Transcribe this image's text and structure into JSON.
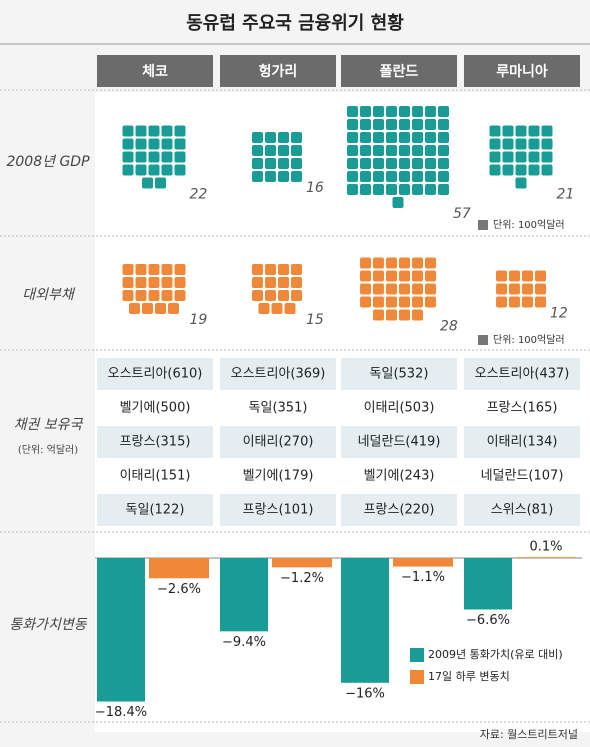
{
  "title": "동유럽 주요국 금융위기 현황",
  "gdp": {
    "label": "2008년 GDP",
    "values": [
      22,
      16,
      57,
      21
    ],
    "color": "#1a9c96",
    "unit": "단위: 100억달러"
  },
  "debt": {
    "label": "대외부채",
    "values": [
      19,
      15,
      28,
      12
    ],
    "color": "#f0883a",
    "unit": "단위: 100억달러"
  },
  "creditors": {
    "label": "채권 보유국",
    "unit": "(단위:  억달러)",
    "columns": [
      [
        "오스트리아(610)",
        "벨기에(500)",
        "프랑스(315)",
        "이태리(151)",
        "독일(122)"
      ],
      [
        "오스트리아(369)",
        "독일(351)",
        "이태리(270)",
        "벨기에(179)",
        "프랑스(101)"
      ],
      [
        "독일(532)",
        "이태리(503)",
        "네덜란드(419)",
        "벨기에(243)",
        "프랑스(220)"
      ],
      [
        "오스트리아(437)",
        "프랑스(165)",
        "이태리(134)",
        "네덜란드(107)",
        "스위스(81)"
      ]
    ]
  },
  "chart_data": {
    "type": "bar",
    "title": "통화가치변동",
    "categories": [
      "체코",
      "헝가리",
      "폴란드",
      "루마니아"
    ],
    "series": [
      {
        "name": "2009년 통화가치(유로 대비)",
        "color": "#1a9c96",
        "values": [
          -18.4,
          -9.4,
          -16,
          -6.6
        ],
        "value_labels": [
          "−18.4%",
          "−9.4%",
          "−16%",
          "−6.6%"
        ]
      },
      {
        "name": "17일 하루 변동치",
        "color": "#f0883a",
        "values": [
          -2.6,
          -1.2,
          -1.1,
          0.1
        ],
        "value_labels": [
          "−2.6%",
          "−1.2%",
          "−1.1%",
          "0.1%"
        ]
      }
    ]
  },
  "source": "자료: 월스트리트저널"
}
